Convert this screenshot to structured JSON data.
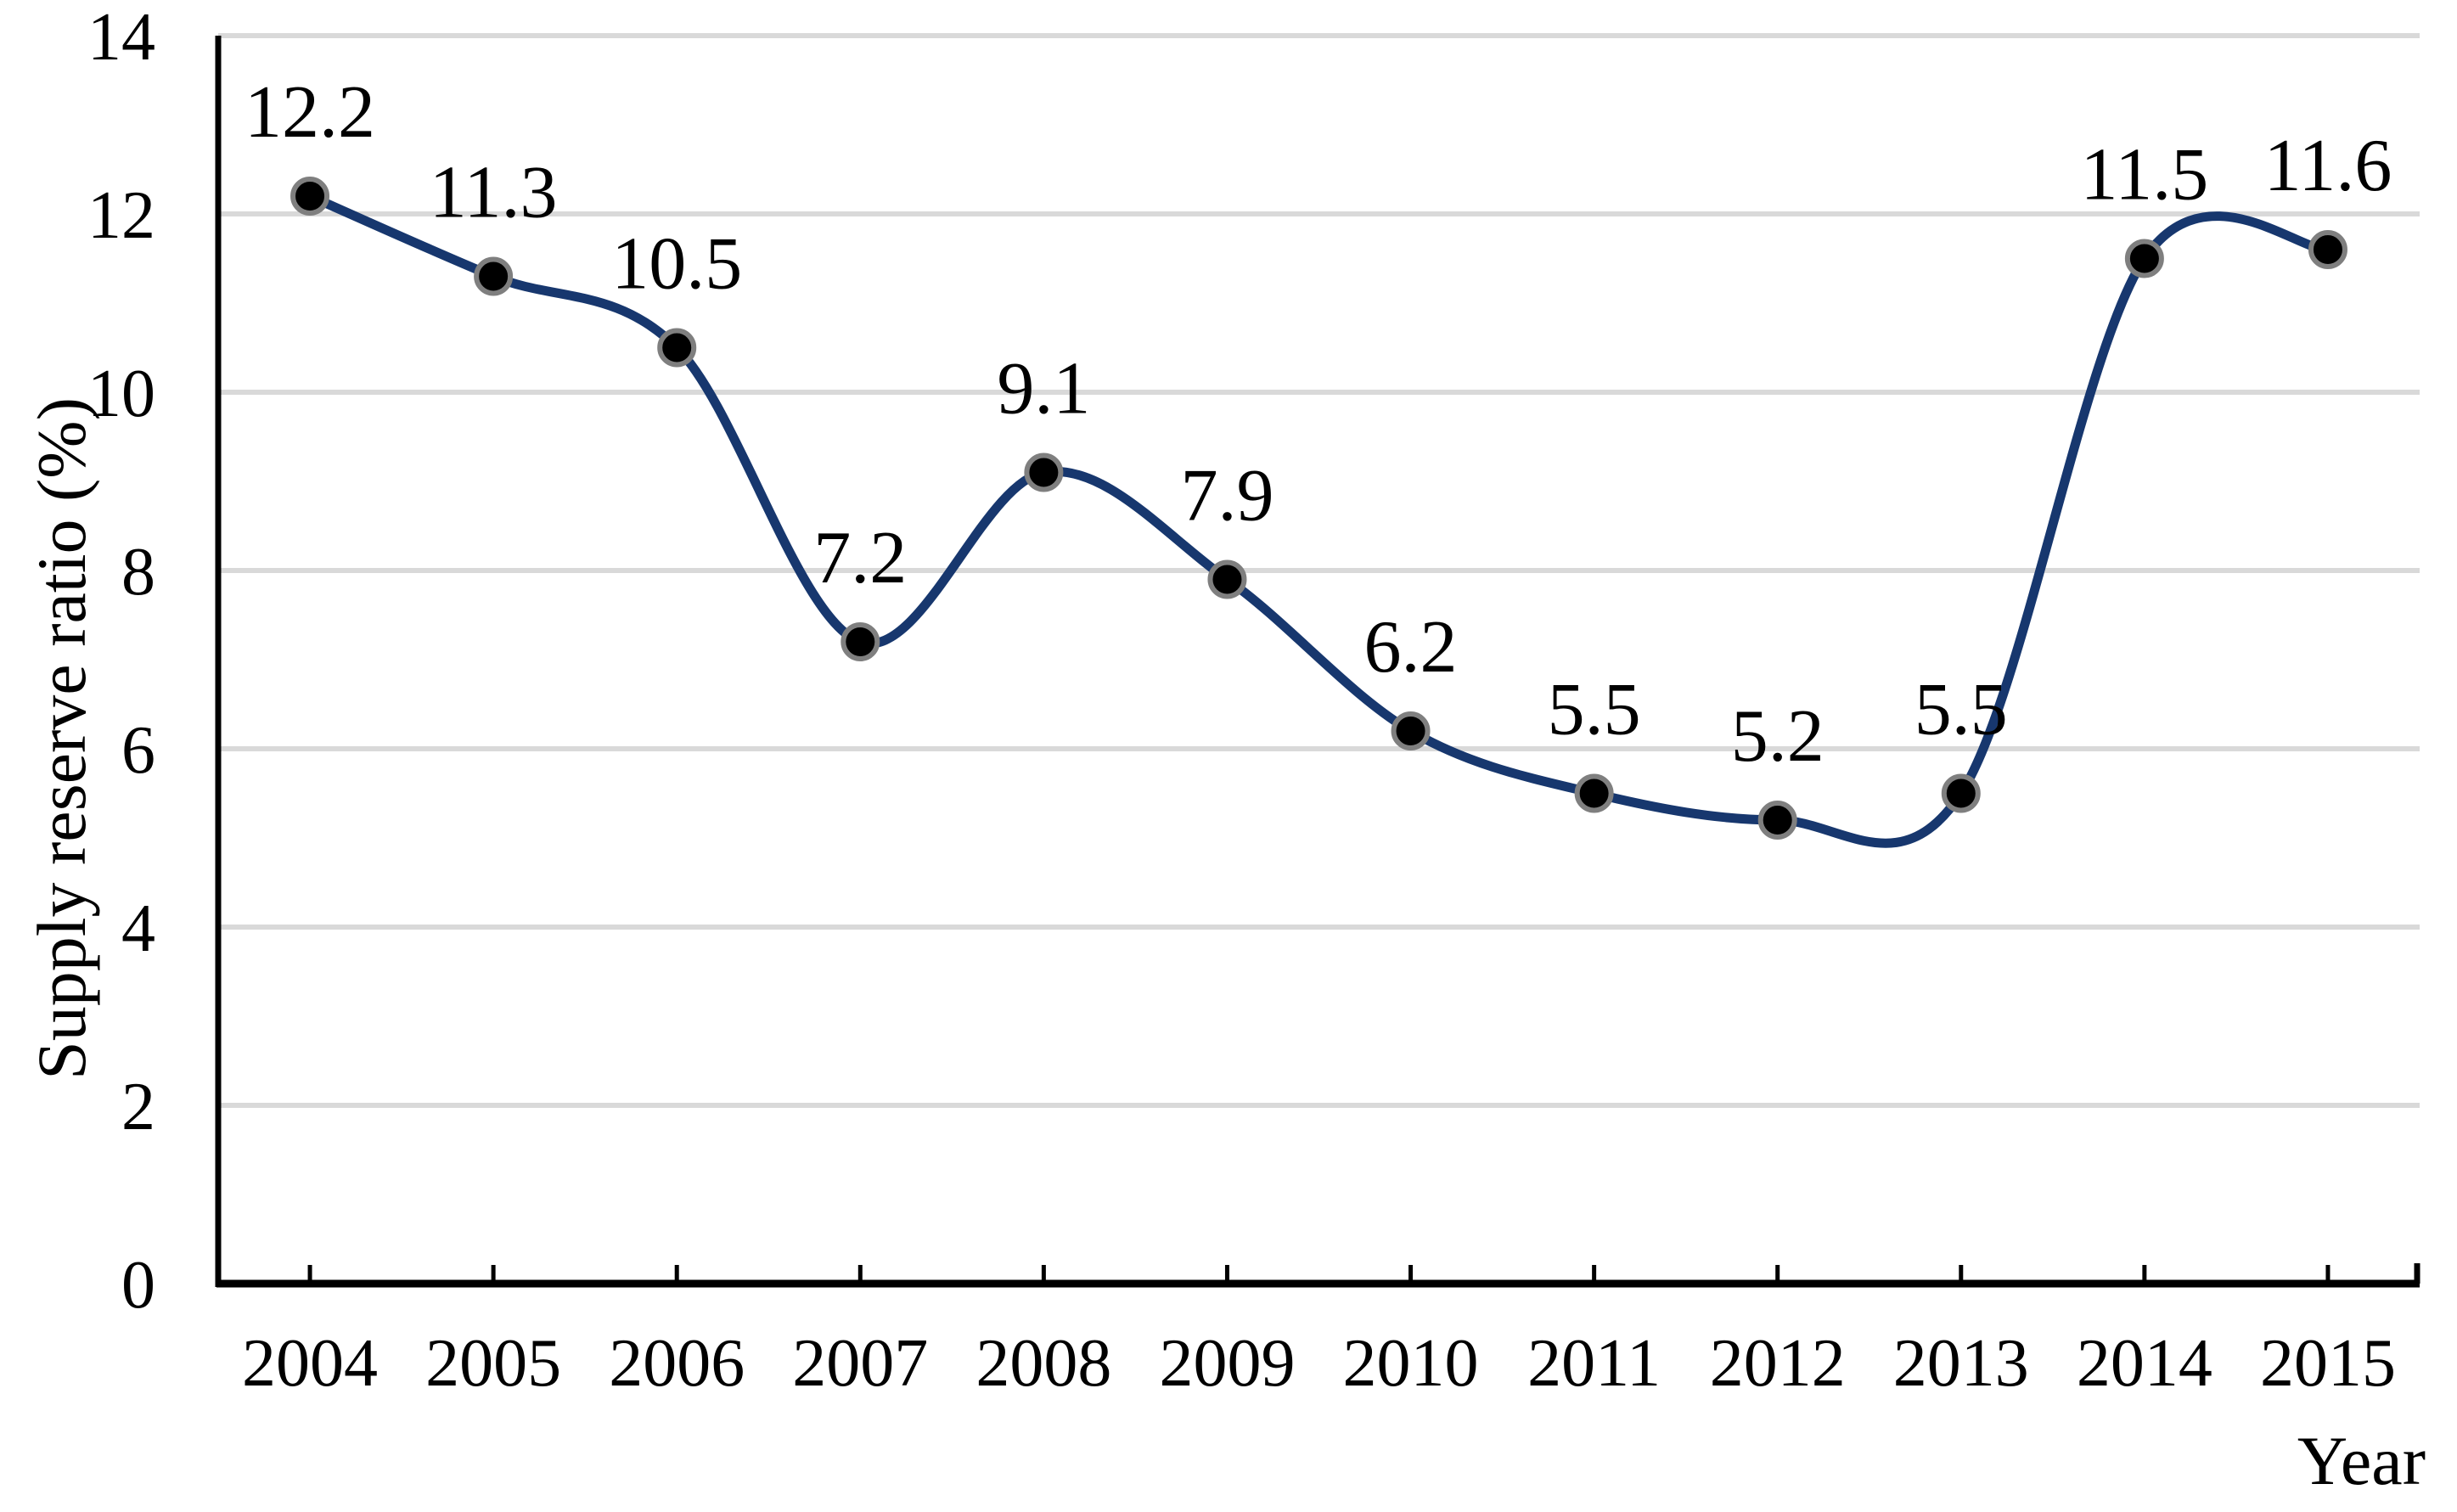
{
  "chart_data": {
    "type": "line",
    "title": "",
    "categories": [
      "2004",
      "2005",
      "2006",
      "2007",
      "2008",
      "2009",
      "2010",
      "2011",
      "2012",
      "2013",
      "2014",
      "2015"
    ],
    "series": [
      {
        "name": "Supply reserve ratio",
        "values": [
          12.2,
          11.3,
          10.5,
          7.2,
          9.1,
          7.9,
          6.2,
          5.5,
          5.2,
          5.5,
          11.5,
          11.6
        ]
      }
    ],
    "data_labels": [
      "12.2",
      "11.3",
      "10.5",
      "7.2",
      "9.1",
      "7.9",
      "6.2",
      "5.5",
      "5.2",
      "5.5",
      "11.5",
      "11.6"
    ],
    "xlabel": "Year",
    "ylabel": "Supply reserve ratio (%)",
    "ylim": [
      0,
      14
    ],
    "yticks": [
      0,
      2,
      4,
      6,
      8,
      10,
      12,
      14
    ],
    "grid": true,
    "legend": "none",
    "line_smoothed": true,
    "marker": "circle",
    "colors": {
      "line": "#17376E",
      "marker_fill": "#000000",
      "marker_stroke": "#7F7F7F",
      "gridline": "#D9D9D9",
      "axis": "#000000",
      "text": "#000000",
      "background": "#FFFFFF"
    }
  }
}
